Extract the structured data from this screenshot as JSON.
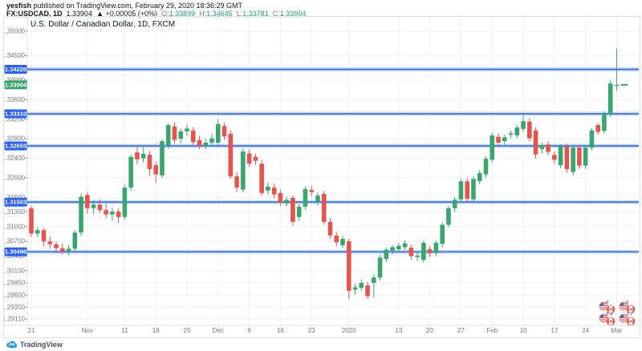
{
  "header": {
    "line1_bold": "yesfish",
    "line1_rest": " published on TradingView.com, February 29, 2020 18:36:29 GMT",
    "symbol": "FX:USDCAD, 1D",
    "last_price": "1.33904",
    "change": "▲ +0.00005 (+0%)",
    "ohlc": {
      "o_label": "O:",
      "o_value": "1.33899",
      "h_label": "H:",
      "h_value": "1.34645",
      "l_label": "L:",
      "l_value": "1.33781",
      "c_label": "C:",
      "c_value": "1.33904"
    }
  },
  "watermark": {
    "brand": "TradingView"
  },
  "idea_markers": {
    "clusters": [
      {
        "count": "4"
      },
      {
        "count": "3"
      },
      {
        "count": "8 4"
      },
      {
        "count": "3 7"
      }
    ]
  },
  "chart_data": {
    "type": "candlestick",
    "title": "U.S. Dollar / Canadian Dollar, 1D, FXCM",
    "symbol": "FX:USDCAD",
    "interval": "1D",
    "price_axis": {
      "side": "left",
      "labels": [
        "1.35000",
        "1.34500",
        "1.34000",
        "1.33600",
        "1.33200",
        "1.32800",
        "1.32400",
        "1.32000",
        "1.31600",
        "1.31300",
        "1.31000",
        "1.30700",
        "1.30400",
        "1.30100",
        "1.29850",
        "1.29600",
        "1.29350",
        "1.29110"
      ],
      "label_prices": [
        1.35,
        1.345,
        1.34,
        1.336,
        1.332,
        1.328,
        1.324,
        1.32,
        1.316,
        1.313,
        1.31,
        1.307,
        1.304,
        1.301,
        1.2985,
        1.296,
        1.2935,
        1.2911
      ],
      "top_price": 1.35,
      "bottom_price": 1.2911
    },
    "time_ticks": [
      {
        "index": 0,
        "label": "21"
      },
      {
        "index": 9,
        "label": "Nov"
      },
      {
        "index": 15,
        "label": "11"
      },
      {
        "index": 20,
        "label": "18"
      },
      {
        "index": 25,
        "label": "25"
      },
      {
        "index": 30,
        "label": "Dec"
      },
      {
        "index": 35,
        "label": "9"
      },
      {
        "index": 40,
        "label": "16"
      },
      {
        "index": 45,
        "label": "23"
      },
      {
        "index": 51,
        "label": "2020"
      },
      {
        "index": 59,
        "label": "13"
      },
      {
        "index": 64,
        "label": "20"
      },
      {
        "index": 69,
        "label": "27"
      },
      {
        "index": 74,
        "label": "Feb"
      },
      {
        "index": 79,
        "label": "10"
      },
      {
        "index": 84,
        "label": "17"
      },
      {
        "index": 89,
        "label": "24"
      },
      {
        "index": 94,
        "label": "Mar"
      }
    ],
    "levels": [
      {
        "price": 1.3422,
        "label": "1.34220"
      },
      {
        "price": 1.3331,
        "label": "1.33310"
      },
      {
        "price": 1.32653,
        "label": "1.32653"
      },
      {
        "price": 1.31503,
        "label": "1.31503"
      },
      {
        "price": 1.30486,
        "label": "1.30486"
      }
    ],
    "last_price": {
      "price": 1.33904,
      "label": "1.33904"
    },
    "colors": {
      "up": "#3aa66e",
      "down": "#e5544e",
      "level_line": "#2d6ce0",
      "level_badge": "#2962ff",
      "last_badge": "#3aa66e",
      "grid": "#eef1f7",
      "axis_text": "#787b86",
      "border": "#dfe2ea"
    },
    "candles": [
      [
        1.3138,
        1.3143,
        1.3079,
        1.3086
      ],
      [
        1.3086,
        1.3099,
        1.3078,
        1.3093
      ],
      [
        1.3093,
        1.3097,
        1.306,
        1.307
      ],
      [
        1.307,
        1.308,
        1.3055,
        1.3064
      ],
      [
        1.3064,
        1.307,
        1.305,
        1.3056
      ],
      [
        1.3056,
        1.3066,
        1.3043,
        1.3049
      ],
      [
        1.3049,
        1.3062,
        1.3042,
        1.3055
      ],
      [
        1.3055,
        1.3093,
        1.3047,
        1.3088
      ],
      [
        1.3088,
        1.3168,
        1.3081,
        1.3161
      ],
      [
        1.3165,
        1.3172,
        1.3127,
        1.3138
      ],
      [
        1.3138,
        1.3153,
        1.3125,
        1.3145
      ],
      [
        1.3145,
        1.3156,
        1.3129,
        1.3134
      ],
      [
        1.3134,
        1.3147,
        1.3117,
        1.3125
      ],
      [
        1.3125,
        1.314,
        1.3112,
        1.3131
      ],
      [
        1.3131,
        1.3138,
        1.3108,
        1.312
      ],
      [
        1.312,
        1.3186,
        1.3114,
        1.318
      ],
      [
        1.318,
        1.3248,
        1.3174,
        1.3243
      ],
      [
        1.3252,
        1.3264,
        1.3228,
        1.3238
      ],
      [
        1.324,
        1.3262,
        1.3231,
        1.3249
      ],
      [
        1.3247,
        1.3255,
        1.3204,
        1.3218
      ],
      [
        1.3226,
        1.3233,
        1.319,
        1.3207
      ],
      [
        1.3205,
        1.3279,
        1.3199,
        1.3275
      ],
      [
        1.3267,
        1.3312,
        1.326,
        1.3308
      ],
      [
        1.3305,
        1.3313,
        1.327,
        1.3278
      ],
      [
        1.328,
        1.3301,
        1.3271,
        1.3295
      ],
      [
        1.3295,
        1.3309,
        1.3286,
        1.3301
      ],
      [
        1.3297,
        1.3304,
        1.3268,
        1.3273
      ],
      [
        1.3277,
        1.3286,
        1.3258,
        1.3265
      ],
      [
        1.3265,
        1.328,
        1.3259,
        1.3272
      ],
      [
        1.3272,
        1.329,
        1.3264,
        1.3281
      ],
      [
        1.3272,
        1.332,
        1.3266,
        1.331
      ],
      [
        1.3306,
        1.3313,
        1.3278,
        1.3285
      ],
      [
        1.329,
        1.3297,
        1.3198,
        1.3203
      ],
      [
        1.3203,
        1.3212,
        1.3172,
        1.318
      ],
      [
        1.3176,
        1.326,
        1.317,
        1.3254
      ],
      [
        1.325,
        1.3258,
        1.3222,
        1.3229
      ],
      [
        1.3243,
        1.3249,
        1.3226,
        1.3235
      ],
      [
        1.3229,
        1.3236,
        1.3163,
        1.3169
      ],
      [
        1.3174,
        1.319,
        1.3166,
        1.3182
      ],
      [
        1.318,
        1.3188,
        1.3158,
        1.3166
      ],
      [
        1.3169,
        1.3175,
        1.3143,
        1.315
      ],
      [
        1.3148,
        1.3161,
        1.3141,
        1.3155
      ],
      [
        1.3159,
        1.3164,
        1.3103,
        1.311
      ],
      [
        1.312,
        1.3146,
        1.3112,
        1.3141
      ],
      [
        1.3141,
        1.3182,
        1.3134,
        1.3177
      ],
      [
        1.3175,
        1.3184,
        1.3162,
        1.3171
      ],
      [
        1.315,
        1.317,
        1.3143,
        1.3164
      ],
      [
        1.3167,
        1.3173,
        1.3104,
        1.311
      ],
      [
        1.311,
        1.3118,
        1.3075,
        1.3082
      ],
      [
        1.3082,
        1.309,
        1.306,
        1.3068
      ],
      [
        1.3062,
        1.3081,
        1.3056,
        1.3075
      ],
      [
        1.307,
        1.3076,
        1.2952,
        1.2969
      ],
      [
        1.2971,
        1.2983,
        1.296,
        1.2976
      ],
      [
        1.2975,
        1.2992,
        1.2968,
        1.2985
      ],
      [
        1.298,
        1.2987,
        1.2952,
        1.2958
      ],
      [
        1.2985,
        1.3002,
        1.2955,
        1.2996
      ],
      [
        1.2996,
        1.3042,
        1.299,
        1.3037
      ],
      [
        1.3034,
        1.3058,
        1.3028,
        1.3053
      ],
      [
        1.3051,
        1.3063,
        1.3044,
        1.3058
      ],
      [
        1.3054,
        1.3067,
        1.3048,
        1.3061
      ],
      [
        1.3058,
        1.3072,
        1.3052,
        1.3066
      ],
      [
        1.3057,
        1.3063,
        1.3032,
        1.304
      ],
      [
        1.3038,
        1.305,
        1.303,
        1.3041
      ],
      [
        1.3032,
        1.3072,
        1.3026,
        1.3067
      ],
      [
        1.3054,
        1.3061,
        1.3038,
        1.3046
      ],
      [
        1.3046,
        1.3072,
        1.304,
        1.3067
      ],
      [
        1.3065,
        1.3109,
        1.3058,
        1.3104
      ],
      [
        1.3104,
        1.3142,
        1.3098,
        1.3138
      ],
      [
        1.3138,
        1.3161,
        1.313,
        1.3155
      ],
      [
        1.3156,
        1.3198,
        1.3149,
        1.3193
      ],
      [
        1.3193,
        1.32,
        1.315,
        1.3157
      ],
      [
        1.3156,
        1.3203,
        1.315,
        1.3198
      ],
      [
        1.3193,
        1.3216,
        1.3187,
        1.321
      ],
      [
        1.3207,
        1.3244,
        1.3201,
        1.3239
      ],
      [
        1.3237,
        1.3292,
        1.3231,
        1.3287
      ],
      [
        1.3284,
        1.3291,
        1.3265,
        1.3272
      ],
      [
        1.3275,
        1.3289,
        1.3268,
        1.3283
      ],
      [
        1.3288,
        1.3297,
        1.328,
        1.3291
      ],
      [
        1.3287,
        1.3309,
        1.3281,
        1.3303
      ],
      [
        1.33,
        1.3329,
        1.3294,
        1.3316
      ],
      [
        1.3315,
        1.3322,
        1.3274,
        1.3281
      ],
      [
        1.3297,
        1.3303,
        1.324,
        1.3248
      ],
      [
        1.3259,
        1.3272,
        1.325,
        1.3267
      ],
      [
        1.3268,
        1.3275,
        1.3246,
        1.3253
      ],
      [
        1.3247,
        1.3254,
        1.3228,
        1.3237
      ],
      [
        1.3226,
        1.3269,
        1.322,
        1.3264
      ],
      [
        1.3264,
        1.327,
        1.321,
        1.3218
      ],
      [
        1.3212,
        1.3267,
        1.3205,
        1.3262
      ],
      [
        1.3262,
        1.3268,
        1.3218,
        1.3225
      ],
      [
        1.3225,
        1.3267,
        1.3219,
        1.3262
      ],
      [
        1.3262,
        1.3302,
        1.3256,
        1.3297
      ],
      [
        1.3308,
        1.3312,
        1.3288,
        1.3294
      ],
      [
        1.3296,
        1.3336,
        1.329,
        1.3331
      ],
      [
        1.3333,
        1.34,
        1.3325,
        1.3393
      ],
      [
        1.33899,
        1.34645,
        1.33781,
        1.33904
      ]
    ]
  }
}
